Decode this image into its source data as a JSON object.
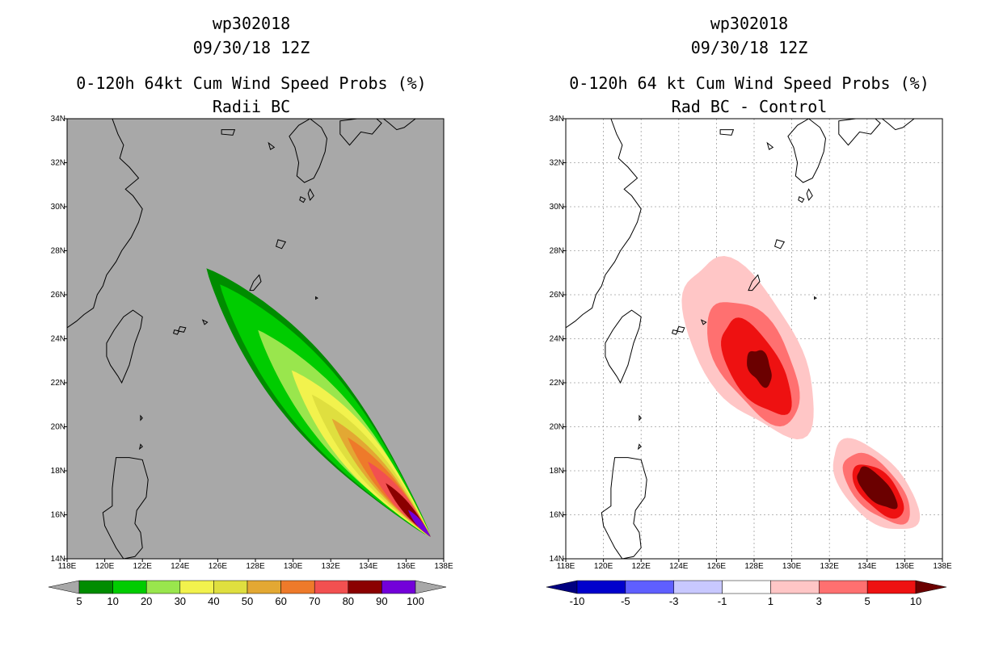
{
  "chart_data": [
    {
      "type": "heatmap",
      "title_lines": [
        "wp302018",
        "09/30/18 12Z",
        "0-120h 64kt Cum Wind Speed Probs (%)",
        "Radii BC"
      ],
      "x_ticks": [
        "118E",
        "120E",
        "122E",
        "124E",
        "126E",
        "128E",
        "130E",
        "132E",
        "134E",
        "136E",
        "138E"
      ],
      "y_ticks": [
        "14N",
        "16N",
        "18N",
        "20N",
        "22N",
        "24N",
        "26N",
        "28N",
        "30N",
        "32N",
        "34N"
      ],
      "xlim": [
        118,
        138
      ],
      "ylim": [
        14,
        34
      ],
      "background_color": "#a8a8a8",
      "grid": false,
      "colorbar": {
        "labels": [
          "5",
          "10",
          "20",
          "30",
          "40",
          "50",
          "60",
          "70",
          "80",
          "90",
          "100"
        ],
        "colors": [
          "#008c00",
          "#00cc00",
          "#99e64d",
          "#f2f24d",
          "#dfdf3f",
          "#e3a833",
          "#ee7a2a",
          "#f25050",
          "#8b0000",
          "#7300d9"
        ],
        "left_arrow": "#a8a8a8",
        "right_arrow": "#a8a8a8"
      },
      "swath_levels": [
        5,
        10,
        20,
        30,
        40,
        50,
        60,
        70,
        80,
        90
      ],
      "track_head": [
        137.3,
        15.0
      ],
      "track_tail": [
        125.4,
        27.2
      ]
    },
    {
      "type": "heatmap",
      "title_lines": [
        "wp302018",
        "09/30/18 12Z",
        "0-120h 64 kt Cum Wind Speed Probs (%)",
        "Rad BC - Control"
      ],
      "x_ticks": [
        "118E",
        "120E",
        "122E",
        "124E",
        "126E",
        "128E",
        "130E",
        "132E",
        "134E",
        "136E",
        "138E"
      ],
      "y_ticks": [
        "14N",
        "16N",
        "18N",
        "20N",
        "22N",
        "24N",
        "26N",
        "28N",
        "30N",
        "32N",
        "34N"
      ],
      "xlim": [
        118,
        138
      ],
      "ylim": [
        14,
        34
      ],
      "background_color": "#ffffff",
      "grid": true,
      "colorbar": {
        "labels": [
          "-10",
          "-5",
          "-3",
          "-1",
          "1",
          "3",
          "5",
          "10"
        ],
        "colors": [
          "#0000cc",
          "#5f5fff",
          "#c8c8ff",
          "#ffffff",
          "#ffc6c6",
          "#ff7070",
          "#ee1111"
        ],
        "left_arrow": "#000080",
        "right_arrow": "#6b0000"
      },
      "difference_levels": [
        1,
        3,
        5,
        10
      ]
    }
  ]
}
